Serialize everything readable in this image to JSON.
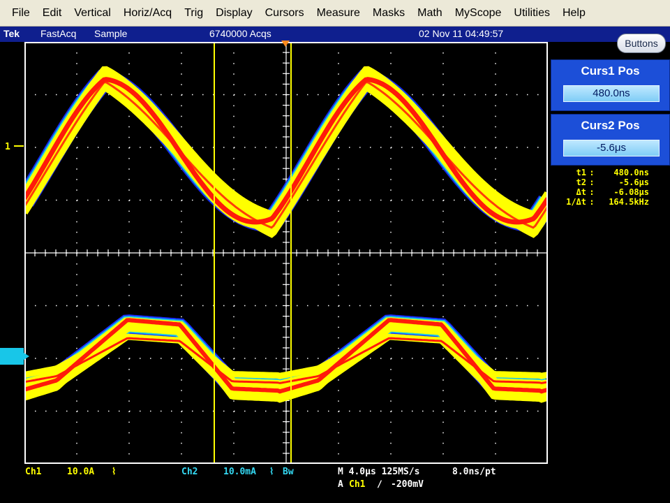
{
  "menu": [
    "File",
    "Edit",
    "Vertical",
    "Horiz/Acq",
    "Trig",
    "Display",
    "Cursors",
    "Measure",
    "Masks",
    "Math",
    "MyScope",
    "Utilities",
    "Help"
  ],
  "status": {
    "brand": "Tek",
    "mode": "FastAcq",
    "acq_mode": "Sample",
    "acq_count": "6740000 Acqs",
    "datetime": "02 Nov 11 04:49:57"
  },
  "buttons_label": "Buttons",
  "markers": {
    "ch1": "1"
  },
  "curs1": {
    "label": "Curs1 Pos",
    "value": "480.0ns"
  },
  "curs2": {
    "label": "Curs2 Pos",
    "value": "-5.6μs"
  },
  "cursor_readouts": [
    {
      "key": "t1",
      "value": "480.0ns"
    },
    {
      "key": "t2",
      "value": "-5.6μs"
    },
    {
      "key": "Δt",
      "value": "-6.08μs"
    },
    {
      "key": "1/Δt",
      "value": "164.5kHz"
    }
  ],
  "bottom": {
    "ch1_label": "Ch1",
    "ch1_scale": "10.0A",
    "ch1_coupling": "⌇",
    "ch2_label": "Ch2",
    "ch2_scale": "10.0mA",
    "ch2_coupling": "⌇",
    "ch2_bw": "Bw",
    "horiz": "M 4.0μs 125MS/s",
    "record": "8.0ns/pt",
    "trig_prefix": "A",
    "trig_source": "Ch1",
    "trig_slope": "∕",
    "trig_level": "-200mV"
  },
  "colors": {
    "trace_high": "#ff1a0a",
    "trace_mid": "#ffff00",
    "trace_low": "#18c6e8",
    "trace_edge": "#1a2cff",
    "cursor": "#ffff00",
    "grid": "#ffffff"
  }
}
